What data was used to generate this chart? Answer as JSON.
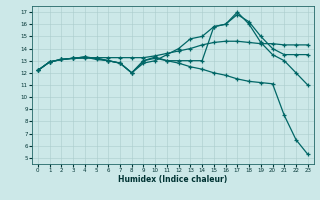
{
  "xlabel": "Humidex (Indice chaleur)",
  "bg_color": "#cce8e8",
  "grid_color": "#aacccc",
  "line_color": "#006666",
  "xlim": [
    -0.5,
    23.5
  ],
  "ylim": [
    4.5,
    17.5
  ],
  "xticks": [
    0,
    1,
    2,
    3,
    4,
    5,
    6,
    7,
    8,
    9,
    10,
    11,
    12,
    13,
    14,
    15,
    16,
    17,
    18,
    19,
    20,
    21,
    22,
    23
  ],
  "yticks": [
    5,
    6,
    7,
    8,
    9,
    10,
    11,
    12,
    13,
    14,
    15,
    16,
    17
  ],
  "line1_x": [
    0,
    1,
    2,
    3,
    4,
    5,
    6,
    7,
    8,
    9,
    10,
    11,
    12,
    13,
    14,
    15,
    16,
    17,
    18,
    19,
    20,
    21,
    22,
    23
  ],
  "line1_y": [
    12.2,
    12.9,
    13.1,
    13.2,
    13.2,
    13.25,
    13.25,
    13.25,
    13.25,
    13.25,
    13.4,
    13.6,
    13.8,
    14.0,
    14.3,
    14.5,
    14.6,
    14.6,
    14.5,
    14.4,
    14.4,
    14.3,
    14.3,
    14.3
  ],
  "line1_markers": [
    0,
    1,
    2,
    3,
    4,
    5,
    6,
    7,
    8,
    9,
    10,
    11,
    12,
    13,
    14,
    15,
    16,
    17,
    18
  ],
  "line2_x": [
    0,
    1,
    2,
    3,
    4,
    5,
    6,
    7,
    8,
    9,
    10,
    11,
    12,
    13,
    14,
    15,
    16,
    17,
    18,
    19,
    20,
    21,
    22,
    23
  ],
  "line2_y": [
    12.2,
    12.9,
    13.1,
    13.2,
    13.3,
    13.1,
    13.0,
    12.8,
    12.0,
    13.0,
    13.3,
    13.0,
    13.0,
    13.0,
    13.0,
    15.8,
    16.0,
    16.8,
    16.2,
    15.0,
    14.0,
    13.5,
    13.5,
    13.5
  ],
  "line3_x": [
    0,
    1,
    2,
    3,
    4,
    5,
    6,
    7,
    8,
    9,
    10,
    11,
    12,
    13,
    14,
    15,
    16,
    17,
    18,
    19,
    20,
    21,
    22,
    23
  ],
  "line3_y": [
    12.2,
    12.9,
    13.1,
    13.2,
    13.3,
    13.2,
    13.0,
    12.8,
    12.0,
    13.0,
    13.2,
    13.0,
    12.8,
    12.5,
    12.3,
    12.0,
    11.8,
    11.5,
    11.3,
    11.2,
    11.1,
    8.5,
    6.5,
    5.3
  ],
  "line4_x": [
    0,
    1,
    2,
    3,
    4,
    5,
    6,
    7,
    8,
    9,
    10,
    11,
    12,
    13,
    14,
    15,
    16,
    17,
    18,
    19,
    20,
    21,
    22,
    23
  ],
  "line4_y": [
    12.2,
    12.9,
    13.1,
    13.2,
    13.3,
    13.2,
    13.0,
    12.8,
    12.0,
    12.8,
    13.0,
    13.5,
    14.0,
    14.8,
    15.0,
    15.8,
    16.0,
    17.0,
    16.0,
    14.5,
    13.5,
    13.0,
    12.0,
    11.0
  ]
}
